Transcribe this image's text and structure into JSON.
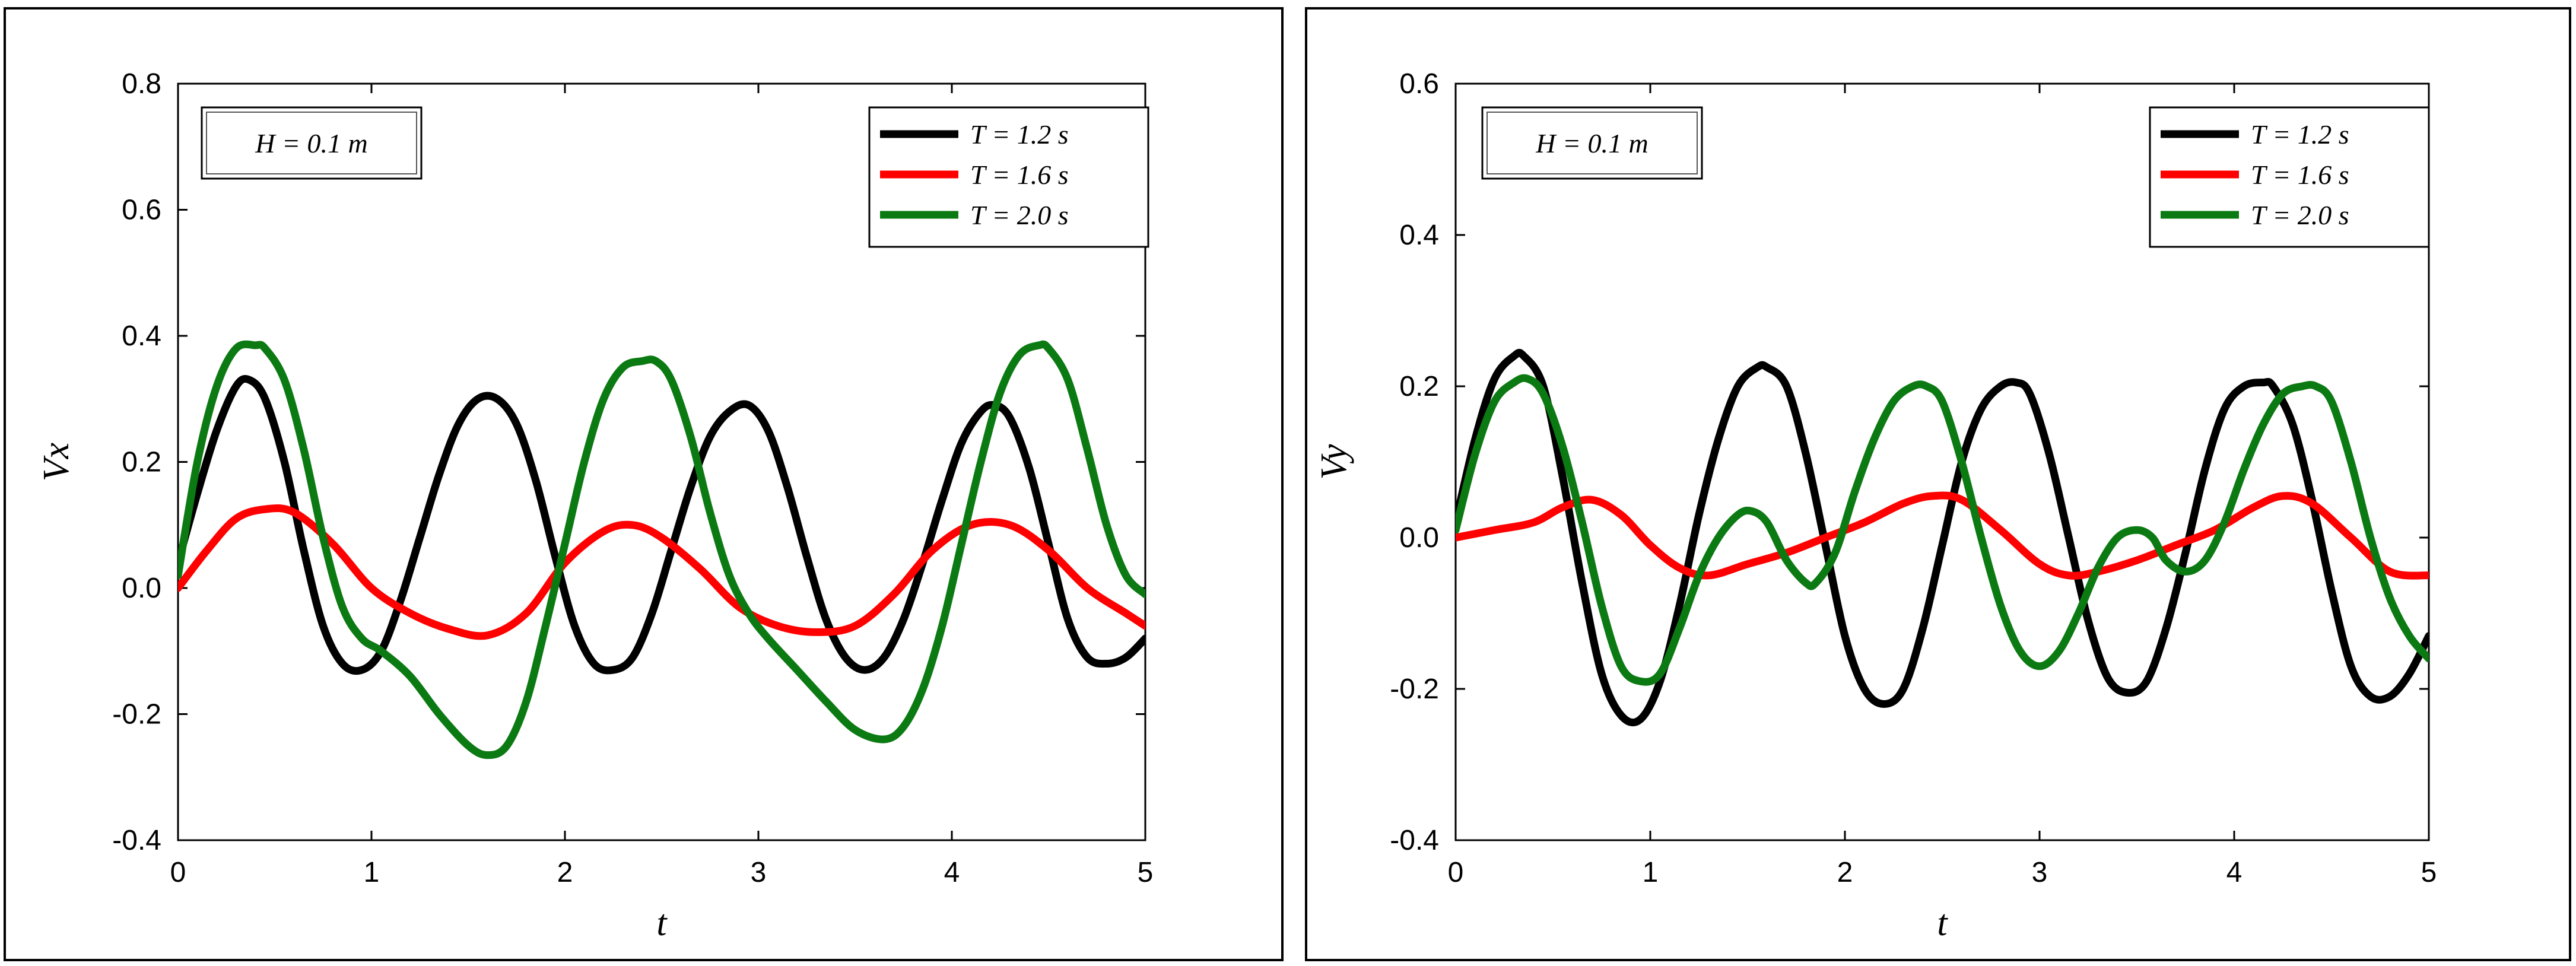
{
  "chart_data": [
    {
      "type": "line",
      "xlabel": "t",
      "ylabel": "Vx",
      "xlim": [
        0,
        5
      ],
      "ylim": [
        -0.4,
        0.8
      ],
      "xticks": [
        "0",
        "1",
        "2",
        "3",
        "4",
        "5"
      ],
      "yticks": [
        "-0.4",
        "-0.2",
        "0.0",
        "0.2",
        "0.4",
        "0.6",
        "0.8"
      ],
      "annotation": "H = 0.1 m",
      "legend_position": "top-right",
      "grid": false,
      "series": [
        {
          "name": "T = 1.2 s",
          "color": "#000000",
          "x": [
            0,
            0.1,
            0.2,
            0.3,
            0.37,
            0.45,
            0.55,
            0.65,
            0.75,
            0.85,
            0.95,
            1.05,
            1.15,
            1.25,
            1.35,
            1.45,
            1.55,
            1.65,
            1.75,
            1.85,
            1.95,
            2.05,
            2.15,
            2.25,
            2.35,
            2.45,
            2.55,
            2.65,
            2.75,
            2.85,
            2.95,
            3.05,
            3.15,
            3.25,
            3.35,
            3.45,
            3.55,
            3.65,
            3.75,
            3.85,
            3.95,
            4.05,
            4.15,
            4.22,
            4.3,
            4.4,
            4.5,
            4.6,
            4.7,
            4.8,
            4.9,
            5.0
          ],
          "y": [
            0.04,
            0.15,
            0.25,
            0.32,
            0.33,
            0.3,
            0.2,
            0.06,
            -0.06,
            -0.12,
            -0.13,
            -0.1,
            -0.02,
            0.08,
            0.18,
            0.26,
            0.3,
            0.3,
            0.26,
            0.17,
            0.05,
            -0.06,
            -0.12,
            -0.13,
            -0.11,
            -0.04,
            0.06,
            0.16,
            0.24,
            0.28,
            0.29,
            0.25,
            0.16,
            0.05,
            -0.05,
            -0.11,
            -0.13,
            -0.11,
            -0.05,
            0.04,
            0.14,
            0.23,
            0.28,
            0.29,
            0.27,
            0.19,
            0.07,
            -0.05,
            -0.11,
            -0.12,
            -0.11,
            -0.08
          ]
        },
        {
          "name": "T = 1.6 s",
          "color": "#ff0000",
          "x": [
            0,
            0.15,
            0.3,
            0.45,
            0.6,
            0.8,
            1.0,
            1.2,
            1.4,
            1.6,
            1.8,
            2.0,
            2.2,
            2.35,
            2.5,
            2.7,
            2.9,
            3.1,
            3.3,
            3.5,
            3.7,
            3.9,
            4.1,
            4.3,
            4.5,
            4.7,
            4.9,
            5.0
          ],
          "y": [
            0.0,
            0.06,
            0.11,
            0.125,
            0.12,
            0.07,
            0.0,
            -0.04,
            -0.065,
            -0.075,
            -0.04,
            0.04,
            0.09,
            0.1,
            0.08,
            0.03,
            -0.03,
            -0.06,
            -0.07,
            -0.06,
            -0.01,
            0.06,
            0.1,
            0.1,
            0.06,
            0.0,
            -0.04,
            -0.06
          ]
        },
        {
          "name": "T = 2.0 s",
          "color": "#0c7a12",
          "x": [
            0,
            0.1,
            0.2,
            0.3,
            0.4,
            0.45,
            0.55,
            0.65,
            0.75,
            0.85,
            0.95,
            1.05,
            1.2,
            1.35,
            1.5,
            1.6,
            1.7,
            1.8,
            1.9,
            2.0,
            2.1,
            2.2,
            2.3,
            2.4,
            2.47,
            2.55,
            2.65,
            2.75,
            2.85,
            2.95,
            3.05,
            3.2,
            3.35,
            3.5,
            3.65,
            3.75,
            3.85,
            3.95,
            4.05,
            4.15,
            4.25,
            4.35,
            4.45,
            4.5,
            4.6,
            4.7,
            4.8,
            4.9,
            5.0
          ],
          "y": [
            0.02,
            0.2,
            0.32,
            0.38,
            0.385,
            0.38,
            0.33,
            0.22,
            0.08,
            -0.03,
            -0.08,
            -0.1,
            -0.14,
            -0.2,
            -0.25,
            -0.265,
            -0.25,
            -0.18,
            -0.06,
            0.07,
            0.2,
            0.3,
            0.35,
            0.36,
            0.36,
            0.33,
            0.24,
            0.12,
            0.02,
            -0.04,
            -0.08,
            -0.13,
            -0.18,
            -0.225,
            -0.24,
            -0.22,
            -0.16,
            -0.06,
            0.07,
            0.2,
            0.31,
            0.37,
            0.385,
            0.38,
            0.33,
            0.22,
            0.1,
            0.02,
            -0.01
          ]
        }
      ]
    },
    {
      "type": "line",
      "xlabel": "t",
      "ylabel": "Vy",
      "xlim": [
        0,
        5
      ],
      "ylim": [
        -0.4,
        0.6
      ],
      "xticks": [
        "0",
        "1",
        "2",
        "3",
        "4",
        "5"
      ],
      "yticks": [
        "-0.4",
        "-0.2",
        "0.0",
        "0.2",
        "0.4",
        "0.6"
      ],
      "annotation": "H = 0.1 m",
      "legend_position": "top-right",
      "grid": false,
      "series": [
        {
          "name": "T = 1.2 s",
          "color": "#000000",
          "x": [
            0,
            0.1,
            0.2,
            0.3,
            0.35,
            0.45,
            0.55,
            0.65,
            0.75,
            0.85,
            0.95,
            1.05,
            1.15,
            1.25,
            1.35,
            1.45,
            1.55,
            1.6,
            1.7,
            1.8,
            1.9,
            2.0,
            2.1,
            2.2,
            2.3,
            2.4,
            2.5,
            2.6,
            2.7,
            2.8,
            2.88,
            2.95,
            3.05,
            3.15,
            3.25,
            3.35,
            3.45,
            3.55,
            3.65,
            3.75,
            3.85,
            3.95,
            4.05,
            4.15,
            4.2,
            4.3,
            4.4,
            4.5,
            4.6,
            4.7,
            4.8,
            4.9,
            5.0
          ],
          "y": [
            0.02,
            0.13,
            0.21,
            0.24,
            0.24,
            0.2,
            0.08,
            -0.06,
            -0.18,
            -0.235,
            -0.24,
            -0.19,
            -0.09,
            0.03,
            0.13,
            0.2,
            0.225,
            0.225,
            0.2,
            0.11,
            -0.01,
            -0.13,
            -0.2,
            -0.22,
            -0.2,
            -0.12,
            -0.01,
            0.1,
            0.17,
            0.2,
            0.205,
            0.19,
            0.11,
            0.0,
            -0.11,
            -0.185,
            -0.205,
            -0.19,
            -0.12,
            -0.02,
            0.09,
            0.17,
            0.2,
            0.205,
            0.2,
            0.15,
            0.05,
            -0.07,
            -0.17,
            -0.21,
            -0.21,
            -0.18,
            -0.13
          ]
        },
        {
          "name": "T = 1.6 s",
          "color": "#ff0000",
          "x": [
            0,
            0.2,
            0.4,
            0.55,
            0.7,
            0.85,
            1.0,
            1.15,
            1.3,
            1.5,
            1.7,
            1.9,
            2.1,
            2.3,
            2.45,
            2.6,
            2.8,
            3.0,
            3.15,
            3.3,
            3.5,
            3.7,
            3.9,
            4.1,
            4.25,
            4.4,
            4.6,
            4.8,
            5.0
          ],
          "y": [
            0.0,
            0.01,
            0.02,
            0.04,
            0.05,
            0.03,
            -0.01,
            -0.04,
            -0.05,
            -0.035,
            -0.02,
            0.0,
            0.02,
            0.045,
            0.055,
            0.05,
            0.01,
            -0.035,
            -0.05,
            -0.045,
            -0.03,
            -0.01,
            0.01,
            0.04,
            0.055,
            0.045,
            0.0,
            -0.045,
            -0.05
          ]
        },
        {
          "name": "T = 2.0 s",
          "color": "#0c7a12",
          "x": [
            0,
            0.1,
            0.2,
            0.3,
            0.37,
            0.45,
            0.55,
            0.65,
            0.75,
            0.85,
            0.95,
            1.05,
            1.15,
            1.25,
            1.35,
            1.45,
            1.52,
            1.6,
            1.7,
            1.8,
            1.85,
            1.95,
            2.05,
            2.15,
            2.25,
            2.35,
            2.42,
            2.5,
            2.6,
            2.7,
            2.8,
            2.9,
            3.0,
            3.1,
            3.2,
            3.3,
            3.4,
            3.5,
            3.58,
            3.65,
            3.75,
            3.85,
            3.95,
            4.05,
            4.15,
            4.25,
            4.35,
            4.42,
            4.5,
            4.6,
            4.7,
            4.8,
            4.9,
            5.0
          ],
          "y": [
            0.01,
            0.11,
            0.18,
            0.205,
            0.21,
            0.19,
            0.12,
            0.02,
            -0.09,
            -0.17,
            -0.19,
            -0.18,
            -0.12,
            -0.05,
            0.0,
            0.03,
            0.035,
            0.02,
            -0.03,
            -0.06,
            -0.06,
            -0.02,
            0.06,
            0.13,
            0.18,
            0.2,
            0.2,
            0.18,
            0.1,
            0.0,
            -0.09,
            -0.15,
            -0.17,
            -0.15,
            -0.1,
            -0.04,
            0.0,
            0.01,
            0.0,
            -0.03,
            -0.045,
            -0.03,
            0.02,
            0.09,
            0.15,
            0.19,
            0.2,
            0.2,
            0.18,
            0.1,
            0.0,
            -0.08,
            -0.13,
            -0.16
          ]
        }
      ]
    }
  ]
}
